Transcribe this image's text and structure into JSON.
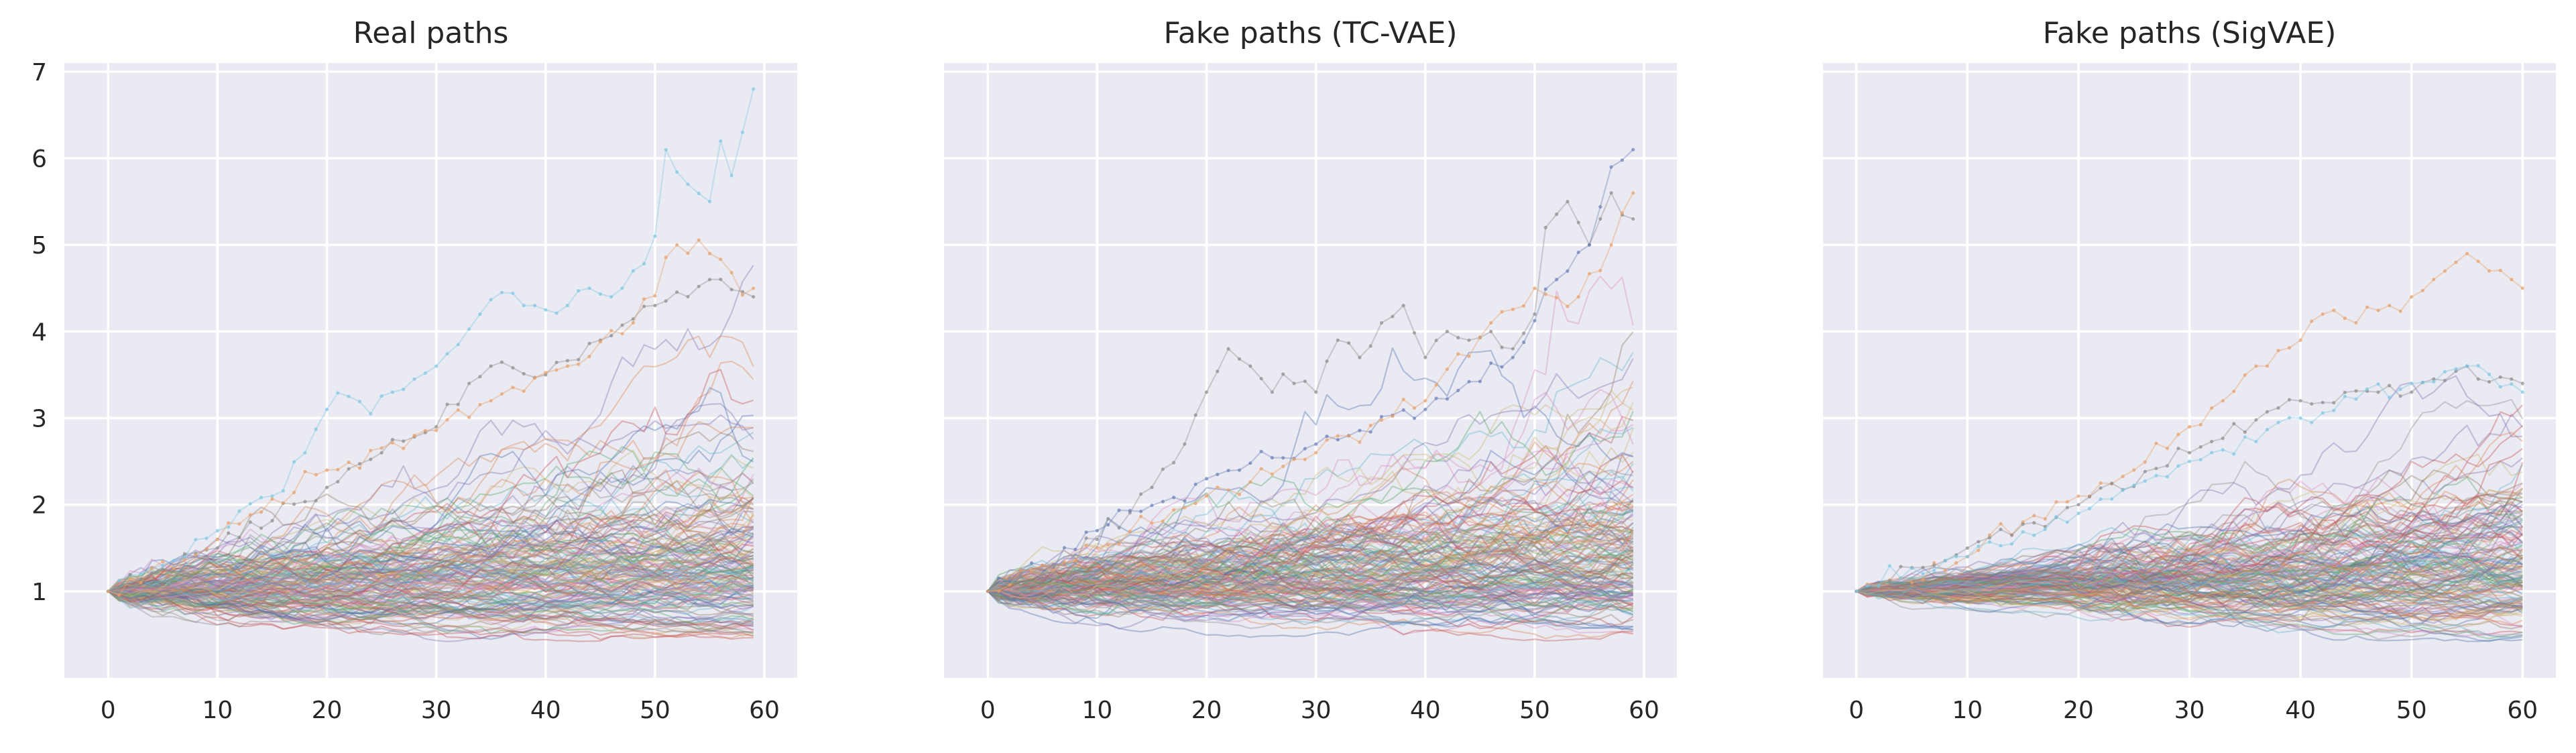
{
  "chart_data": [
    {
      "type": "line",
      "title": "Real paths",
      "xlabel": "",
      "ylabel": "",
      "xlim": [
        -4,
        63
      ],
      "ylim": [
        0,
        7.1
      ],
      "xticks": [
        "0",
        "10",
        "20",
        "30",
        "40",
        "50",
        "60"
      ],
      "yticks": [
        "1",
        "2",
        "3",
        "4",
        "5",
        "6",
        "7"
      ],
      "grid": true,
      "legend": "none",
      "n_points": 60,
      "x_last": 59,
      "start_value": 1,
      "many_paths": true,
      "highlight_paths": [
        {
          "color": "#7ec8e3",
          "points": [
            [
              0,
              1
            ],
            [
              5,
              1.3
            ],
            [
              10,
              1.7
            ],
            [
              15,
              2.1
            ],
            [
              18,
              2.6
            ],
            [
              20,
              3.1
            ],
            [
              22,
              3.25
            ],
            [
              24,
              3.05
            ],
            [
              26,
              3.3
            ],
            [
              28,
              3.45
            ],
            [
              30,
              3.6
            ],
            [
              32,
              3.85
            ],
            [
              34,
              4.2
            ],
            [
              36,
              4.45
            ],
            [
              38,
              4.3
            ],
            [
              40,
              4.25
            ],
            [
              42,
              4.3
            ],
            [
              44,
              4.5
            ],
            [
              46,
              4.4
            ],
            [
              48,
              4.7
            ],
            [
              50,
              5.1
            ],
            [
              51,
              6.1
            ],
            [
              53,
              5.7
            ],
            [
              55,
              5.5
            ],
            [
              56,
              6.2
            ],
            [
              57,
              5.8
            ],
            [
              58,
              6.3
            ],
            [
              59,
              6.8
            ]
          ]
        },
        {
          "color": "#8d8d8d",
          "points": [
            [
              0,
              1
            ],
            [
              10,
              1.5
            ],
            [
              20,
              2.2
            ],
            [
              25,
              2.6
            ],
            [
              30,
              2.9
            ],
            [
              35,
              3.6
            ],
            [
              40,
              3.5
            ],
            [
              45,
              3.9
            ],
            [
              50,
              4.3
            ],
            [
              55,
              4.6
            ],
            [
              59,
              4.4
            ]
          ]
        },
        {
          "color": "#e8a06a",
          "points": [
            [
              0,
              1
            ],
            [
              10,
              1.6
            ],
            [
              20,
              2.4
            ],
            [
              28,
              2.8
            ],
            [
              35,
              3.2
            ],
            [
              42,
              3.6
            ],
            [
              48,
              4.1
            ],
            [
              52,
              5.0
            ],
            [
              55,
              4.9
            ],
            [
              59,
              4.5
            ]
          ]
        }
      ]
    },
    {
      "type": "line",
      "title": "Fake paths (TC-VAE)",
      "xlabel": "",
      "ylabel": "",
      "xlim": [
        -4,
        63
      ],
      "ylim": [
        0,
        7.1
      ],
      "xticks": [
        "0",
        "10",
        "20",
        "30",
        "40",
        "50",
        "60"
      ],
      "yticks": [],
      "grid": true,
      "legend": "none",
      "n_points": 60,
      "x_last": 59,
      "start_value": 1,
      "many_paths": true,
      "highlight_paths": [
        {
          "color": "#8d8d8d",
          "points": [
            [
              0,
              1
            ],
            [
              5,
              1.2
            ],
            [
              10,
              1.6
            ],
            [
              15,
              2.2
            ],
            [
              18,
              2.7
            ],
            [
              20,
              3.3
            ],
            [
              22,
              3.8
            ],
            [
              24,
              3.6
            ],
            [
              26,
              3.3
            ],
            [
              28,
              3.4
            ],
            [
              30,
              3.3
            ],
            [
              32,
              3.9
            ],
            [
              34,
              3.7
            ],
            [
              36,
              4.1
            ],
            [
              38,
              4.3
            ],
            [
              40,
              3.7
            ],
            [
              42,
              4.0
            ],
            [
              44,
              3.9
            ],
            [
              46,
              4.0
            ],
            [
              48,
              3.8
            ],
            [
              50,
              4.2
            ],
            [
              51,
              5.2
            ],
            [
              53,
              5.5
            ],
            [
              55,
              5.0
            ],
            [
              57,
              5.6
            ],
            [
              59,
              5.3
            ]
          ]
        },
        {
          "color": "#6b7fb8",
          "points": [
            [
              0,
              1
            ],
            [
              10,
              1.7
            ],
            [
              20,
              2.3
            ],
            [
              30,
              2.7
            ],
            [
              40,
              3.1
            ],
            [
              48,
              3.7
            ],
            [
              52,
              4.6
            ],
            [
              55,
              5.0
            ],
            [
              57,
              5.9
            ],
            [
              59,
              6.1
            ]
          ]
        },
        {
          "color": "#e8a06a",
          "points": [
            [
              0,
              1
            ],
            [
              10,
              1.5
            ],
            [
              20,
              2.1
            ],
            [
              30,
              2.6
            ],
            [
              40,
              3.2
            ],
            [
              46,
              4.1
            ],
            [
              50,
              4.5
            ],
            [
              54,
              4.4
            ],
            [
              57,
              5.0
            ],
            [
              59,
              5.6
            ]
          ]
        }
      ]
    },
    {
      "type": "line",
      "title": "Fake paths (SigVAE)",
      "xlabel": "",
      "ylabel": "",
      "xlim": [
        -3,
        63
      ],
      "ylim": [
        0,
        7.1
      ],
      "xticks": [
        "0",
        "10",
        "20",
        "30",
        "40",
        "50",
        "60"
      ],
      "yticks": [],
      "grid": true,
      "legend": "none",
      "n_points": 61,
      "x_last": 60,
      "start_value": 1,
      "many_paths": true,
      "highlight_paths": [
        {
          "color": "#e8a06a",
          "points": [
            [
              0,
              1
            ],
            [
              5,
              1.1
            ],
            [
              10,
              1.4
            ],
            [
              15,
              1.8
            ],
            [
              20,
              2.1
            ],
            [
              25,
              2.4
            ],
            [
              30,
              2.9
            ],
            [
              33,
              3.2
            ],
            [
              36,
              3.6
            ],
            [
              40,
              3.9
            ],
            [
              42,
              4.2
            ],
            [
              45,
              4.1
            ],
            [
              48,
              4.3
            ],
            [
              50,
              4.4
            ],
            [
              52,
              4.6
            ],
            [
              54,
              4.8
            ],
            [
              55,
              4.9
            ],
            [
              57,
              4.7
            ],
            [
              59,
              4.6
            ],
            [
              60,
              4.5
            ]
          ]
        },
        {
          "color": "#8d8d8d",
          "points": [
            [
              0,
              1
            ],
            [
              10,
              1.5
            ],
            [
              20,
              2.0
            ],
            [
              30,
              2.6
            ],
            [
              40,
              3.2
            ],
            [
              50,
              3.3
            ],
            [
              55,
              3.6
            ],
            [
              60,
              3.4
            ]
          ]
        },
        {
          "color": "#7ec8e3",
          "points": [
            [
              0,
              1
            ],
            [
              10,
              1.4
            ],
            [
              20,
              1.9
            ],
            [
              30,
              2.5
            ],
            [
              40,
              3.0
            ],
            [
              50,
              3.4
            ],
            [
              55,
              3.6
            ],
            [
              60,
              3.3
            ]
          ]
        }
      ]
    }
  ],
  "palette": [
    "#4c72b0",
    "#dd8452",
    "#55a868",
    "#c44e52",
    "#8172b3",
    "#937860",
    "#da8bc3",
    "#8c8c8c",
    "#ccb974",
    "#64b5cd"
  ]
}
